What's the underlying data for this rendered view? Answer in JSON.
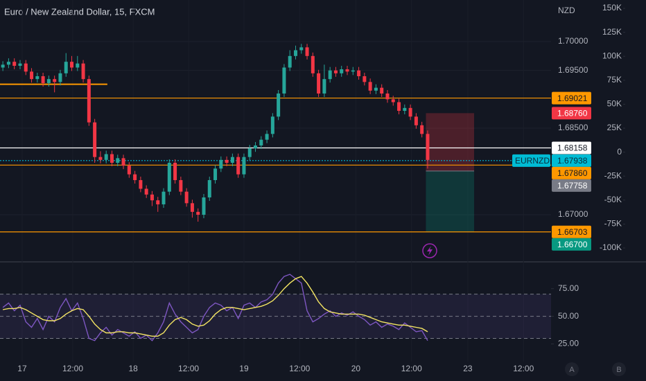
{
  "chart_data": {
    "type": "candlestick",
    "title": "Euro / New Zealand Dollar, 15, FXCM",
    "currency": "NZD",
    "symbol": "EURNZD",
    "up_color": "#26a69a",
    "down_color": "#f23645",
    "xlim": [
      -0.5,
      95.5
    ],
    "xticks": [
      {
        "value": 3.36,
        "label": "17"
      },
      {
        "value": 12.18,
        "label": "12:00"
      },
      {
        "value": 22.7,
        "label": "18"
      },
      {
        "value": 32.35,
        "label": "12:00"
      },
      {
        "value": 42.0,
        "label": "19"
      },
      {
        "value": 51.7,
        "label": "12:00"
      },
      {
        "value": 61.5,
        "label": "20"
      },
      {
        "value": 71.2,
        "label": "12:00"
      },
      {
        "value": 81.0,
        "label": "23"
      },
      {
        "value": 90.7,
        "label": "12:00"
      }
    ],
    "ylim": [
      1.6622,
      1.7072
    ],
    "yticks": [
      {
        "value": 1.7,
        "label": "1.70000"
      },
      {
        "value": 1.695,
        "label": "1.69500"
      },
      {
        "value": 1.685,
        "label": "1.68500"
      },
      {
        "value": 1.67,
        "label": "1.67000"
      }
    ],
    "y2lim": [
      -112300,
      158700
    ],
    "y2ticks": [
      {
        "value": 150000,
        "label": "150K"
      },
      {
        "value": 125000,
        "label": "125K"
      },
      {
        "value": 100000,
        "label": "100K"
      },
      {
        "value": 75000,
        "label": "75K"
      },
      {
        "value": 50000,
        "label": "50K"
      },
      {
        "value": 25000,
        "label": "25K"
      },
      0,
      {
        "value": -25000,
        "label": "-25K"
      },
      {
        "value": -50000,
        "label": "-50K"
      },
      {
        "value": -75000,
        "label": "-75K"
      },
      {
        "value": -100000,
        "label": "-100K"
      }
    ],
    "open": [
      1.6955,
      1.696,
      1.6965,
      1.6958,
      1.6962,
      1.6948,
      1.6935,
      1.694,
      1.6928,
      1.6935,
      1.693,
      1.6945,
      1.6965,
      1.6955,
      1.6962,
      1.6935,
      1.686,
      1.68,
      1.6795,
      1.6805,
      1.679,
      1.6798,
      1.6785,
      1.677,
      1.676,
      1.6745,
      1.6735,
      1.6725,
      1.6718,
      1.674,
      1.679,
      1.676,
      1.674,
      1.672,
      1.6705,
      1.67,
      1.673,
      1.676,
      1.678,
      1.6795,
      1.679,
      1.68,
      1.677,
      1.68,
      1.6815,
      1.682,
      1.683,
      1.684,
      1.687,
      1.691,
      1.6955,
      1.6975,
      1.6985,
      1.699,
      1.6975,
      1.6945,
      1.691,
      1.6935,
      1.695,
      1.6945,
      1.6952,
      1.6948,
      1.695,
      1.694,
      1.693,
      1.6915,
      1.692,
      1.691,
      1.69,
      1.6895,
      1.688,
      1.6885,
      1.687,
      1.6855,
      1.684
    ],
    "high": [
      1.6966,
      1.6971,
      1.6971,
      1.6968,
      1.6968,
      1.6954,
      1.6946,
      1.6946,
      1.6941,
      1.6941,
      1.6951,
      1.698,
      1.6975,
      1.6975,
      1.6968,
      1.6941,
      1.6866,
      1.681,
      1.6811,
      1.6811,
      1.6804,
      1.6804,
      1.6791,
      1.6776,
      1.6766,
      1.6751,
      1.6741,
      1.6731,
      1.6746,
      1.6796,
      1.6796,
      1.6766,
      1.6746,
      1.6726,
      1.6711,
      1.6736,
      1.6766,
      1.6786,
      1.6801,
      1.6801,
      1.6806,
      1.6806,
      1.6806,
      1.6821,
      1.6826,
      1.6836,
      1.6846,
      1.6876,
      1.6916,
      1.6961,
      1.6985,
      1.6993,
      1.6996,
      1.6996,
      1.6981,
      1.6951,
      1.696,
      1.6956,
      1.6956,
      1.6958,
      1.6958,
      1.6956,
      1.6956,
      1.6946,
      1.6936,
      1.6926,
      1.6926,
      1.6916,
      1.6906,
      1.6901,
      1.6891,
      1.6891,
      1.6876,
      1.6861,
      1.6846
    ],
    "low": [
      1.6949,
      1.6954,
      1.6952,
      1.6952,
      1.6942,
      1.6929,
      1.6929,
      1.6922,
      1.6922,
      1.6912,
      1.6924,
      1.6939,
      1.6949,
      1.6949,
      1.6929,
      1.6854,
      1.679,
      1.6789,
      1.6789,
      1.6784,
      1.6784,
      1.6779,
      1.6764,
      1.6754,
      1.6739,
      1.6729,
      1.6715,
      1.6705,
      1.6712,
      1.6734,
      1.6754,
      1.6734,
      1.6714,
      1.6695,
      1.6688,
      1.6694,
      1.6724,
      1.6754,
      1.6774,
      1.6784,
      1.6784,
      1.6764,
      1.6764,
      1.6794,
      1.6809,
      1.6814,
      1.6824,
      1.6834,
      1.6864,
      1.6904,
      1.6949,
      1.6969,
      1.6979,
      1.6969,
      1.6939,
      1.6904,
      1.6904,
      1.6929,
      1.6939,
      1.6939,
      1.6942,
      1.6942,
      1.6934,
      1.6924,
      1.6909,
      1.6909,
      1.6904,
      1.6894,
      1.6889,
      1.6874,
      1.6874,
      1.6864,
      1.6849,
      1.6834,
      1.678
    ],
    "close": [
      1.696,
      1.6965,
      1.6958,
      1.6962,
      1.6948,
      1.6935,
      1.694,
      1.6928,
      1.6935,
      1.693,
      1.6945,
      1.6965,
      1.6955,
      1.6962,
      1.6935,
      1.686,
      1.68,
      1.6795,
      1.6805,
      1.679,
      1.6798,
      1.6785,
      1.677,
      1.676,
      1.6745,
      1.6735,
      1.6725,
      1.6718,
      1.674,
      1.679,
      1.676,
      1.674,
      1.672,
      1.6705,
      1.67,
      1.673,
      1.676,
      1.678,
      1.6795,
      1.679,
      1.68,
      1.677,
      1.68,
      1.6815,
      1.682,
      1.683,
      1.684,
      1.687,
      1.691,
      1.6955,
      1.6975,
      1.6985,
      1.699,
      1.6975,
      1.6945,
      1.691,
      1.6935,
      1.695,
      1.6945,
      1.6952,
      1.6948,
      1.695,
      1.694,
      1.693,
      1.6915,
      1.692,
      1.691,
      1.69,
      1.6895,
      1.688,
      1.6885,
      1.687,
      1.6855,
      1.684,
      1.6795
    ],
    "levels": [
      {
        "value": 1.69021,
        "color": "#ff9800"
      },
      {
        "value": 1.68158,
        "color": "#ffffff"
      },
      {
        "value": 1.6786,
        "color": "#ff9800"
      },
      {
        "value": 1.66703,
        "color": "#ff9800"
      },
      {
        "value": 1.6926,
        "color": "#ff9800",
        "xlim": [
          -0.5,
          18.2
        ]
      },
      {
        "value": 1.67938,
        "color": "#00bcd4",
        "dashed": true
      }
    ],
    "position": {
      "entry": 1.67758,
      "stop": 1.6876,
      "target": 1.667,
      "xlim": [
        73.7,
        82.1
      ]
    },
    "price_labels": [
      {
        "value": 1.69021,
        "color": "#ff9800",
        "text_color": "#131722"
      },
      {
        "value": 1.6876,
        "label": "1.68760",
        "color": "#f23645",
        "text_color": "#ffffff"
      },
      {
        "value": 1.68158,
        "color": "#ffffff",
        "text_color": "#131722"
      },
      {
        "value": 1.67938,
        "color": "#00bcd4",
        "text_color": "#0b2b3a"
      },
      {
        "value": 1.6786,
        "label": "1.67860",
        "color": "#ff9800",
        "text_color": "#131722"
      },
      {
        "value": 1.67758,
        "color": "#787b86",
        "text_color": "#ffffff"
      },
      {
        "value": 1.66703,
        "color": "#ff9800",
        "text_color": "#131722"
      },
      {
        "value": 1.667,
        "label": "1.66700",
        "color": "#089981",
        "text_color": "#ffffff"
      }
    ],
    "rsi": {
      "ylim": [
        9,
        98
      ],
      "yticks": [
        {
          "value": 75,
          "label": "75.00"
        },
        {
          "value": 50,
          "label": "50.00"
        },
        {
          "value": 25,
          "label": "25.00"
        }
      ],
      "bands": [
        70,
        50,
        30
      ],
      "series": [
        {
          "color": "#7e57c2",
          "values": [
            58,
            62,
            55,
            60,
            45,
            40,
            48,
            38,
            50,
            45,
            58,
            66,
            55,
            62,
            48,
            30,
            28,
            35,
            40,
            33,
            38,
            35,
            32,
            36,
            30,
            33,
            28,
            35,
            45,
            62,
            52,
            45,
            40,
            35,
            38,
            50,
            58,
            62,
            60,
            55,
            58,
            48,
            60,
            62,
            58,
            63,
            65,
            70,
            80,
            86,
            88,
            84,
            80,
            55,
            45,
            48,
            52,
            55,
            50,
            53,
            51,
            54,
            50,
            47,
            42,
            45,
            40,
            43,
            41,
            38,
            44,
            40,
            36,
            37,
            28
          ]
        },
        {
          "color": "#f5e663",
          "values": [
            56,
            57,
            57,
            58,
            56,
            53,
            50,
            47,
            46,
            46,
            48,
            52,
            55,
            57,
            56,
            50,
            43,
            38,
            35,
            35,
            36,
            36,
            35,
            35,
            34,
            33,
            32,
            32,
            35,
            42,
            47,
            49,
            47,
            43,
            41,
            42,
            46,
            52,
            56,
            58,
            58,
            57,
            56,
            57,
            58,
            59,
            61,
            64,
            69,
            75,
            80,
            84,
            86,
            80,
            72,
            63,
            57,
            54,
            53,
            52,
            52,
            52,
            52,
            51,
            49,
            47,
            45,
            44,
            43,
            42,
            42,
            41,
            40,
            39,
            36
          ]
        }
      ]
    },
    "buttons": [
      "A",
      "B"
    ]
  }
}
